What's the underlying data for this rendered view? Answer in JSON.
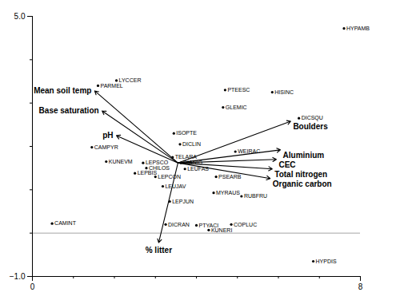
{
  "chart_data": {
    "type": "scatter",
    "xlim": [
      0,
      8
    ],
    "ylim": [
      -1,
      5
    ],
    "xticks": [
      0,
      8
    ],
    "yticks": [
      -1,
      5
    ],
    "minor_xticks": [
      1,
      2,
      3,
      4,
      5,
      6,
      7
    ],
    "minor_yticks": [
      0,
      1,
      2,
      3,
      4
    ],
    "hline_y": 0.0,
    "background_color": "#ffffff",
    "points": [
      {
        "label": "HYPAMB",
        "x": 7.6,
        "y": 4.72
      },
      {
        "label": "PARMEL",
        "x": 1.6,
        "y": 3.4
      },
      {
        "label": "LYCCER",
        "x": 2.05,
        "y": 3.52
      },
      {
        "label": "PTEESC",
        "x": 4.7,
        "y": 3.3
      },
      {
        "label": "HISINC",
        "x": 5.85,
        "y": 3.25
      },
      {
        "label": "GLEMIC",
        "x": 4.65,
        "y": 2.9
      },
      {
        "label": "DICSQU",
        "x": 6.5,
        "y": 2.65
      },
      {
        "label": "ISOPTE",
        "x": 3.45,
        "y": 2.3
      },
      {
        "label": "DICLIN",
        "x": 3.6,
        "y": 2.05
      },
      {
        "label": "CAMPYR",
        "x": 1.45,
        "y": 1.98
      },
      {
        "label": "WEIRAC",
        "x": 4.95,
        "y": 1.88
      },
      {
        "label": "TELARA",
        "x": 3.42,
        "y": 1.75
      },
      {
        "label": "KUNEVM",
        "x": 1.8,
        "y": 1.65
      },
      {
        "label": "LEPSCO",
        "x": 2.7,
        "y": 1.62
      },
      {
        "label": "DIANIG",
        "x": 3.62,
        "y": 1.62
      },
      {
        "label": "CHILOS",
        "x": 2.78,
        "y": 1.5
      },
      {
        "label": "LEUFAS",
        "x": 3.72,
        "y": 1.48
      },
      {
        "label": "LEPBIS",
        "x": 2.5,
        "y": 1.38
      },
      {
        "label": "LEPCON",
        "x": 3.0,
        "y": 1.3
      },
      {
        "label": "PSEARB",
        "x": 4.48,
        "y": 1.3
      },
      {
        "label": "LEUJAV",
        "x": 3.18,
        "y": 1.08
      },
      {
        "label": "MYRAUS",
        "x": 4.42,
        "y": 0.93
      },
      {
        "label": "LEPJUN",
        "x": 3.35,
        "y": 0.73
      },
      {
        "label": "RUBFRU",
        "x": 5.1,
        "y": 0.85
      },
      {
        "label": "CAMINT",
        "x": 0.48,
        "y": 0.22
      },
      {
        "label": "DICRAN",
        "x": 3.25,
        "y": 0.2
      },
      {
        "label": "PTYACI",
        "x": 4.0,
        "y": 0.18
      },
      {
        "label": "COPLUC",
        "x": 4.85,
        "y": 0.2
      },
      {
        "label": "KUNERI",
        "x": 4.3,
        "y": 0.07
      },
      {
        "label": "HYPDIS",
        "x": 6.85,
        "y": -0.65
      }
    ],
    "arrows": [
      {
        "label": "Mean soil temp",
        "x0": 3.55,
        "y0": 1.62,
        "x1": 1.52,
        "y1": 3.28
      },
      {
        "label": "Base saturation",
        "x0": 3.55,
        "y0": 1.62,
        "x1": 1.7,
        "y1": 2.82
      },
      {
        "label": "pH",
        "x0": 3.55,
        "y0": 1.62,
        "x1": 2.05,
        "y1": 2.25
      },
      {
        "label": "Boulders",
        "x0": 3.55,
        "y0": 1.62,
        "x1": 6.3,
        "y1": 2.58
      },
      {
        "label": "Aluminium",
        "x0": 3.55,
        "y0": 1.62,
        "x1": 6.05,
        "y1": 1.92
      },
      {
        "label": "CEC",
        "x0": 3.55,
        "y0": 1.62,
        "x1": 5.95,
        "y1": 1.7
      },
      {
        "label": "Total nitrogen",
        "x0": 3.55,
        "y0": 1.62,
        "x1": 5.85,
        "y1": 1.48
      },
      {
        "label": "Organic carbon",
        "x0": 3.55,
        "y0": 1.62,
        "x1": 5.8,
        "y1": 1.26
      },
      {
        "label": "% litter",
        "x0": 3.55,
        "y0": 1.62,
        "x1": 3.08,
        "y1": -0.22
      }
    ]
  }
}
